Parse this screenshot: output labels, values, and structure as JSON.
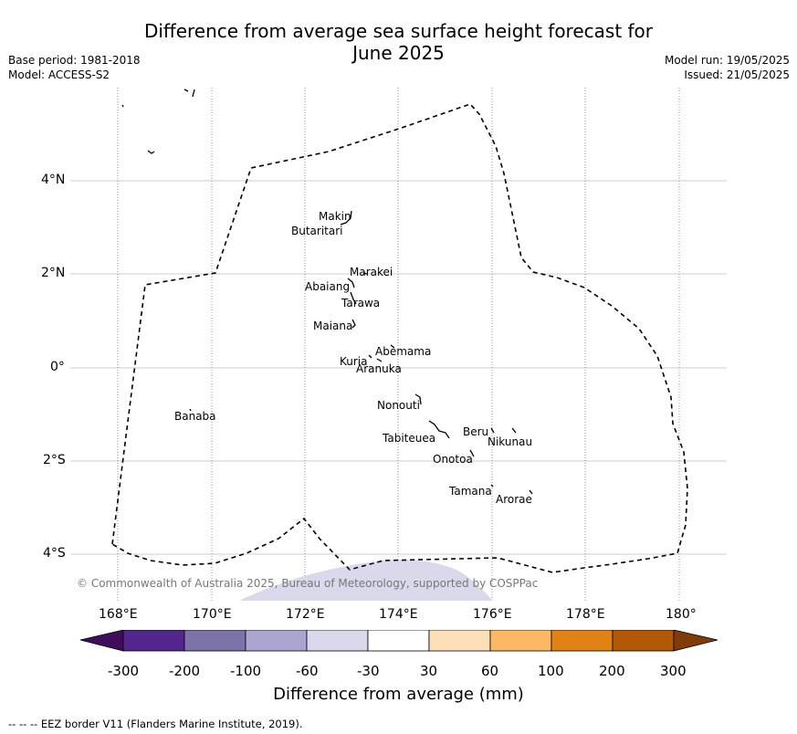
{
  "title_line1": "Difference from average sea surface height forecast for",
  "title_line2": "June 2025",
  "meta": {
    "base_period": "Base period: 1981-2018",
    "model": "Model: ACCESS-S2",
    "model_run": "Model run: 19/05/2025",
    "issued": "Issued: 21/05/2025"
  },
  "lat_labels": [
    "4°N",
    "2°N",
    "0°",
    "2°S",
    "4°S"
  ],
  "lon_labels": [
    "168°E",
    "170°E",
    "172°E",
    "174°E",
    "176°E",
    "178°E",
    "180°"
  ],
  "islands": [
    "Makin",
    "Butaritari",
    "Marakei",
    "Abaiang",
    "Tarawa",
    "Maiana",
    "Abemama",
    "Kuria",
    "Aranuka",
    "Banaba",
    "Nonouti",
    "Tabiteuea",
    "Beru",
    "Nikunau",
    "Onotoa",
    "Tamana",
    "Arorae"
  ],
  "copyright": "© Commonwealth of Australia 2025, Bureau of Meteorology, supported by COSPPac",
  "colorbar": {
    "ticks": [
      "-300",
      "-200",
      "-100",
      "-60",
      "-30",
      "30",
      "60",
      "100",
      "200",
      "300"
    ],
    "colors": [
      "#3f0d5c",
      "#54278f",
      "#7e72ab",
      "#aba6cf",
      "#d9d9eb",
      "#ffffff",
      "#fee0b6",
      "#fdb863",
      "#e08214",
      "#b35806",
      "#7f3b08"
    ],
    "title": "Difference from average (mm)"
  },
  "anomaly_fill_color": "#d9d9eb",
  "eez_note": "--  --  -- EEZ border V11 (Flanders Marine Institute, 2019)."
}
